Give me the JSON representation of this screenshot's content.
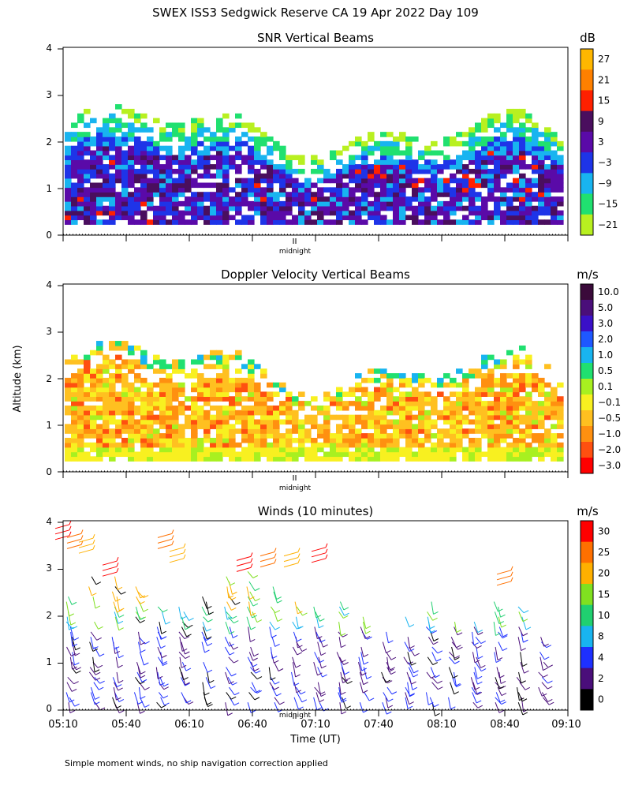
{
  "figure": {
    "title": "SWEX ISS3 Sedgwick Reserve CA  19 Apr 2022 Day 109",
    "ylabel": "Altitude (km)",
    "xlabel": "Time (UT)",
    "midnight_label": "midnight",
    "footnote": "Simple moment winds, no ship navigation correction applied"
  },
  "chart_data": [
    {
      "type": "heatmap",
      "title": "SNR Vertical Beams",
      "ylim": [
        0,
        4
      ],
      "yticks": [
        "0",
        "1",
        "2",
        "3",
        "4"
      ],
      "xlim": [
        "05:10",
        "09:10"
      ],
      "colorbar": {
        "unit": "dB",
        "labels": [
          "27",
          "21",
          "15",
          "9",
          "3",
          "−3",
          "−9",
          "−15",
          "−21"
        ],
        "colors": [
          "#ffb700",
          "#ff8000",
          "#ff2000",
          "#4a0e5e",
          "#5a0aa8",
          "#1e34e8",
          "#18b4f0",
          "#20e070",
          "#b8f020"
        ]
      }
    },
    {
      "type": "heatmap",
      "title": "Doppler Velocity Vertical Beams",
      "ylim": [
        0,
        4
      ],
      "yticks": [
        "0",
        "1",
        "2",
        "3",
        "4"
      ],
      "xlim": [
        "05:10",
        "09:10"
      ],
      "colorbar": {
        "unit": "m/s",
        "labels": [
          "10.0",
          "5.0",
          "3.0",
          "2.0",
          "1.0",
          "0.5",
          "0.1",
          "−0.1",
          "−0.5",
          "−1.0",
          "−2.0",
          "−3.0"
        ],
        "colors": [
          "#3a0a3a",
          "#4a0e7a",
          "#3a10c8",
          "#1e58ff",
          "#18b4f0",
          "#20e070",
          "#a8f020",
          "#f8f020",
          "#ffc020",
          "#ff9010",
          "#ff5010",
          "#ff0000"
        ]
      }
    },
    {
      "type": "scatter",
      "title": "Winds (10 minutes)",
      "ylim": [
        0,
        4
      ],
      "yticks": [
        "0",
        "1",
        "2",
        "3",
        "4"
      ],
      "x": [
        "05:10",
        "05:40",
        "06:10",
        "06:40",
        "07:10",
        "07:40",
        "08:10",
        "08:40",
        "09:10"
      ],
      "colorbar": {
        "unit": "m/s",
        "labels": [
          "30",
          "25",
          "20",
          "15",
          "10",
          "8",
          "4",
          "2",
          "0"
        ],
        "colors": [
          "#ff0000",
          "#ff7000",
          "#ffb000",
          "#80e020",
          "#20d070",
          "#18b4f0",
          "#1e30ff",
          "#4a0e7a",
          "#000000"
        ]
      }
    }
  ]
}
